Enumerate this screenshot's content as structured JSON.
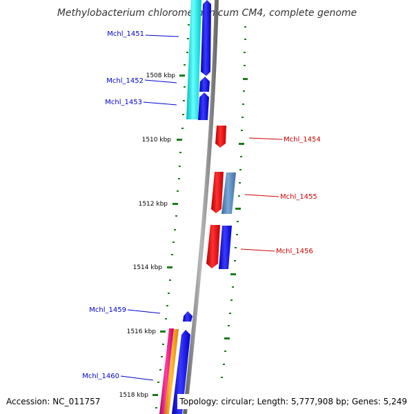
{
  "title": "Methylobacterium chloromethanicum CM4, complete genome",
  "footer": {
    "accession": "Accession: NC_011757",
    "topology": "Topology: circular; Length: 5,777,908 bp; Genes: 5,249"
  },
  "colors": {
    "background": "#ffffff",
    "backbone": "#808080",
    "tick": "#1a7a1a",
    "left_label": "#0000cc",
    "right_label": "#cc0000",
    "gene_cyan": "#00e5e5",
    "gene_blue": "#0000ee",
    "gene_red": "#ee0000",
    "gene_steel": "#4a7fb5",
    "gene_magenta": "#e0107a",
    "gene_orange": "#ff9900"
  },
  "kbp_labels": [
    "1508 kbp",
    "1510 kbp",
    "1512 kbp",
    "1514 kbp",
    "1516 kbp",
    "1518 kbp"
  ],
  "gene_labels": [
    {
      "id": "g1451",
      "text": "Mchl_1451",
      "side": "left"
    },
    {
      "id": "g1452",
      "text": "Mchl_1452",
      "side": "left"
    },
    {
      "id": "g1453",
      "text": "Mchl_1453",
      "side": "left"
    },
    {
      "id": "g1454",
      "text": "Mchl_1454",
      "side": "right"
    },
    {
      "id": "g1455",
      "text": "Mchl_1455",
      "side": "right"
    },
    {
      "id": "g1456",
      "text": "Mchl_1456",
      "side": "right"
    },
    {
      "id": "g1459",
      "text": "Mchl_1459",
      "side": "left"
    },
    {
      "id": "g1460",
      "text": "Mchl_1460",
      "side": "left"
    }
  ]
}
